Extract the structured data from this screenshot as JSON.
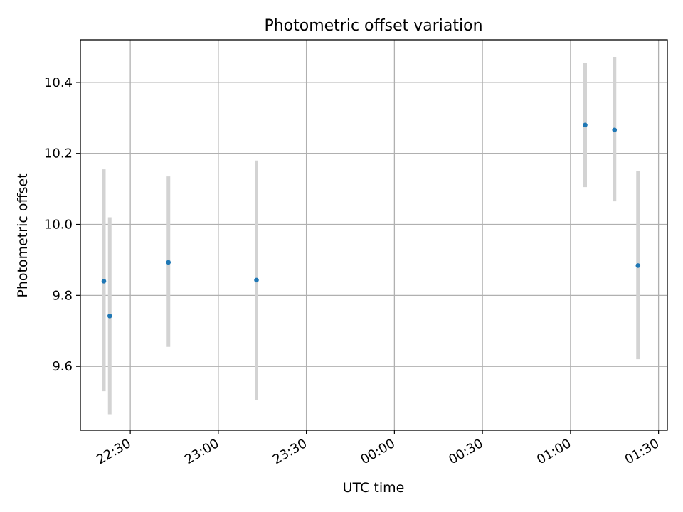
{
  "chart_data": {
    "type": "scatter",
    "title": "Photometric offset variation",
    "xlabel": "UTC time",
    "ylabel": "Photometric offset",
    "x_axis_type": "time",
    "x_range": [
      "22:13",
      "01:33"
    ],
    "ylim": [
      9.42,
      10.52
    ],
    "grid": true,
    "x_ticks": [
      "22:30",
      "23:00",
      "23:30",
      "00:00",
      "00:30",
      "01:00",
      "01:30"
    ],
    "y_ticks": [
      "9.6",
      "9.8",
      "10.0",
      "10.2",
      "10.4"
    ],
    "y_tick_values": [
      9.6,
      9.8,
      10.0,
      10.2,
      10.4
    ],
    "points": [
      {
        "x": "22:21",
        "y": 9.84,
        "err_low": 9.53,
        "err_high": 10.155
      },
      {
        "x": "22:23",
        "y": 9.742,
        "err_low": 9.465,
        "err_high": 10.02
      },
      {
        "x": "22:43",
        "y": 9.893,
        "err_low": 9.655,
        "err_high": 10.135
      },
      {
        "x": "23:13",
        "y": 9.843,
        "err_low": 9.505,
        "err_high": 10.18
      },
      {
        "x": "01:05",
        "y": 10.28,
        "err_low": 10.105,
        "err_high": 10.455
      },
      {
        "x": "01:15",
        "y": 10.266,
        "err_low": 10.065,
        "err_high": 10.472
      },
      {
        "x": "01:23",
        "y": 9.884,
        "err_low": 9.62,
        "err_high": 10.15
      }
    ],
    "marker_color": "#1f77b4",
    "errorbar_color": "#d3d3d3",
    "grid_color": "#b0b0b0"
  }
}
